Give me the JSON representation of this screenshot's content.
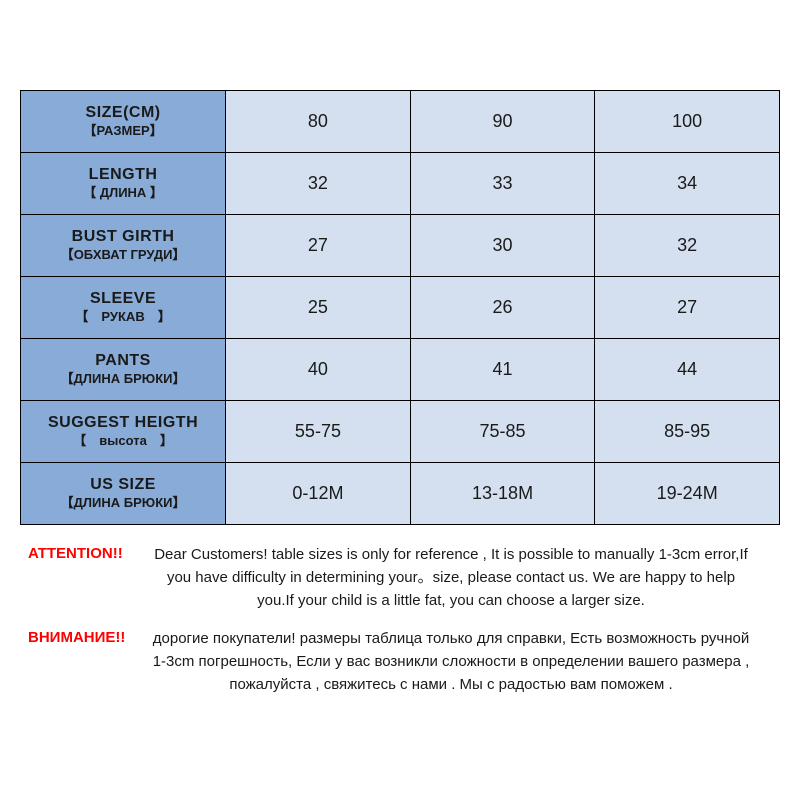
{
  "table": {
    "header_bg": "#88abd8",
    "data_bg": "#d4e0ef",
    "border_color": "#000000",
    "rows": [
      {
        "main": "SIZE(CM)",
        "sub": "【РАЗМЕР】",
        "c1": "80",
        "c2": "90",
        "c3": "100"
      },
      {
        "main": "LENGTH",
        "sub": "【 ДЛИНА 】",
        "c1": "32",
        "c2": "33",
        "c3": "34"
      },
      {
        "main": "BUST GIRTH",
        "sub": "【ОБХВАТ ГРУДИ】",
        "c1": "27",
        "c2": "30",
        "c3": "32"
      },
      {
        "main": "SLEEVE",
        "sub": "【　РУКАВ　】",
        "c1": "25",
        "c2": "26",
        "c3": "27"
      },
      {
        "main": "PANTS",
        "sub": "【ДЛИНА БРЮКИ】",
        "c1": "40",
        "c2": "41",
        "c3": "44"
      },
      {
        "main": "SUGGEST HEIGTH",
        "sub": "【　высота　】",
        "c1": "55-75",
        "c2": "75-85",
        "c3": "85-95"
      },
      {
        "main": "US SIZE",
        "sub": "【ДЛИНА БРЮКИ】",
        "c1": "0-12M",
        "c2": "13-18M",
        "c3": "19-24M"
      }
    ]
  },
  "notes": {
    "label_color": "#ff0000",
    "en": {
      "label": "ATTENTION!!",
      "text": "Dear Customers! table sizes is only for reference , It is possible to manually 1-3cm error,If you have difficulty in determining your。size, please contact us. We are happy to help you.If your child is a little fat, you can choose a larger size."
    },
    "ru": {
      "label": "ВНИМАНИЕ!!",
      "text": "дорогие покупатели! размеры таблица только для справки, Есть возможность ручной 1-3cm погрешность, Если у вас возникли сложности в определении вашего размера , пожалуйста , свяжитесь с нами . Мы с радостью вам поможем ."
    }
  }
}
